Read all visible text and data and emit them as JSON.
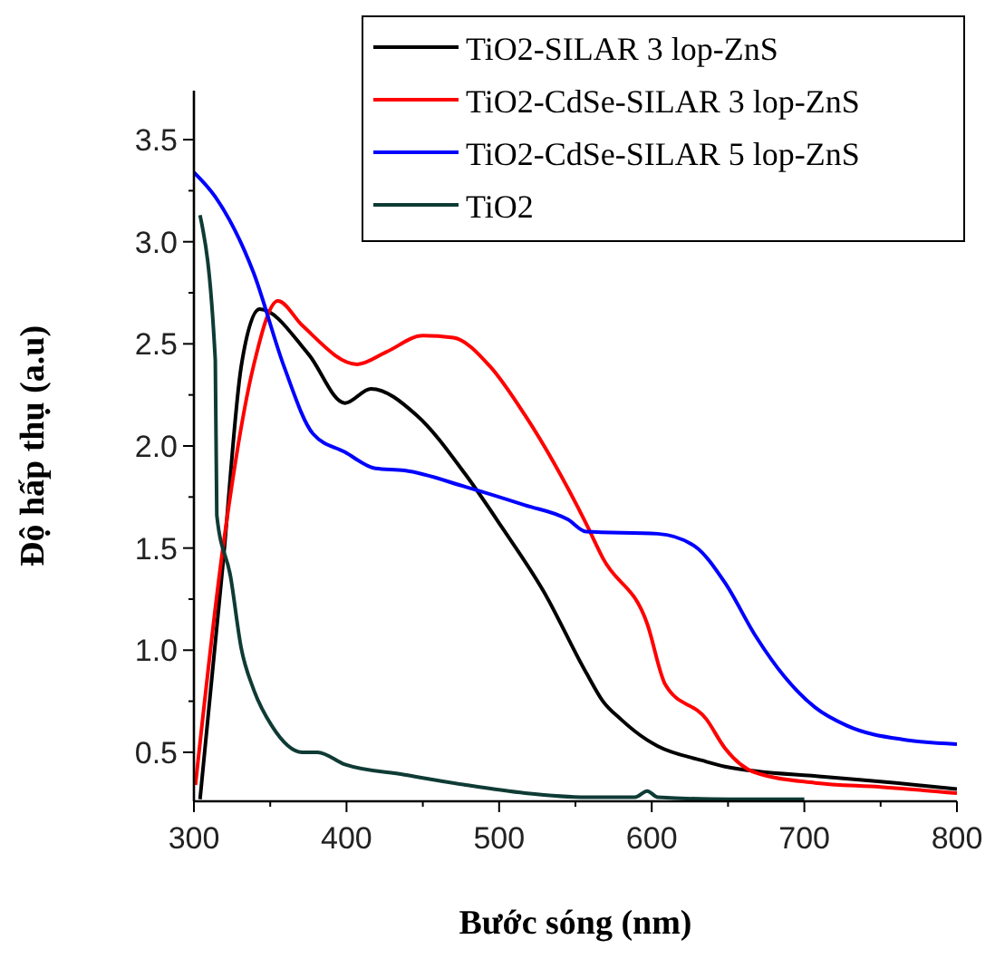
{
  "chart_data": {
    "type": "line",
    "xlabel": "Bước sóng (nm)",
    "ylabel": "Độ hấp thụ (a.u)",
    "xlim": [
      300,
      800
    ],
    "xticks": [
      300,
      {
        "value": 350,
        "label": null
      },
      400,
      {
        "value": 450,
        "label": null
      },
      500,
      {
        "value": 550,
        "label": null
      },
      600,
      {
        "value": 650,
        "label": null
      },
      700,
      {
        "value": 750,
        "label": null
      },
      800
    ],
    "ylim": [
      0.26,
      3.74
    ],
    "yticks": [
      0.5,
      {
        "value": 0.75,
        "label": null
      },
      "1.0",
      {
        "value": 1.25,
        "label": null
      },
      1.5,
      {
        "value": 1.75,
        "label": null
      },
      "2.0",
      {
        "value": 2.25,
        "label": null
      },
      2.5,
      {
        "value": 2.75,
        "label": null
      },
      "3.0",
      {
        "value": 3.25,
        "label": null
      },
      3.5
    ],
    "grid": false,
    "legend": "top right",
    "line_style": "solid",
    "series": [
      {
        "name": "TiO2-SILAR 3 lop-ZnS",
        "color": "#000000",
        "x": [
          304,
          319,
          331,
          343,
          375,
          399,
          416,
          446,
          478,
          502,
          529,
          557,
          568,
          580,
          597,
          604,
          633,
          648,
          713,
          760,
          800
        ],
        "values": [
          0.27,
          1.42,
          2.39,
          2.67,
          2.45,
          2.21,
          2.28,
          2.15,
          1.86,
          1.6,
          1.29,
          0.89,
          0.75,
          0.66,
          0.56,
          0.53,
          0.46,
          0.43,
          0.38,
          0.35,
          0.32
        ]
      },
      {
        "name": "TiO2-CdSe-SILAR 3 lop-ZnS",
        "color": "#ff0000",
        "x": [
          301,
          319,
          339,
          355,
          371,
          407,
          426,
          450,
          470,
          494,
          517,
          557,
          568,
          597,
          609,
          636,
          648,
          668,
          707,
          750,
          800
        ],
        "values": [
          0.34,
          1.5,
          2.39,
          2.71,
          2.59,
          2.4,
          2.46,
          2.54,
          2.53,
          2.39,
          2.15,
          1.62,
          1.45,
          1.13,
          0.83,
          0.66,
          0.52,
          0.4,
          0.35,
          0.33,
          0.3
        ]
      },
      {
        "name": "TiO2-CdSe-SILAR 5 lop-ZnS",
        "color": "#0000ff",
        "x": [
          300,
          314,
          339,
          359,
          378,
          399,
          419,
          438,
          478,
          517,
          545,
          557,
          604,
          628,
          648,
          668,
          687,
          707,
          728,
          767,
          800
        ],
        "values": [
          3.34,
          3.22,
          2.85,
          2.39,
          2.06,
          1.97,
          1.89,
          1.88,
          1.8,
          1.71,
          1.64,
          1.58,
          1.57,
          1.51,
          1.33,
          1.07,
          0.87,
          0.72,
          0.63,
          0.56,
          0.54
        ]
      },
      {
        "name": "TiO2",
        "color": "#0f3b35",
        "x": [
          304,
          314,
          315,
          324,
          331,
          339,
          351,
          371,
          381,
          399,
          438,
          478,
          517,
          557,
          589,
          597,
          604,
          650,
          700
        ],
        "values": [
          3.13,
          2.42,
          1.66,
          1.36,
          1.01,
          0.81,
          0.63,
          0.5,
          0.5,
          0.44,
          0.39,
          0.34,
          0.3,
          0.28,
          0.28,
          0.31,
          0.28,
          0.27,
          0.27
        ]
      }
    ]
  }
}
